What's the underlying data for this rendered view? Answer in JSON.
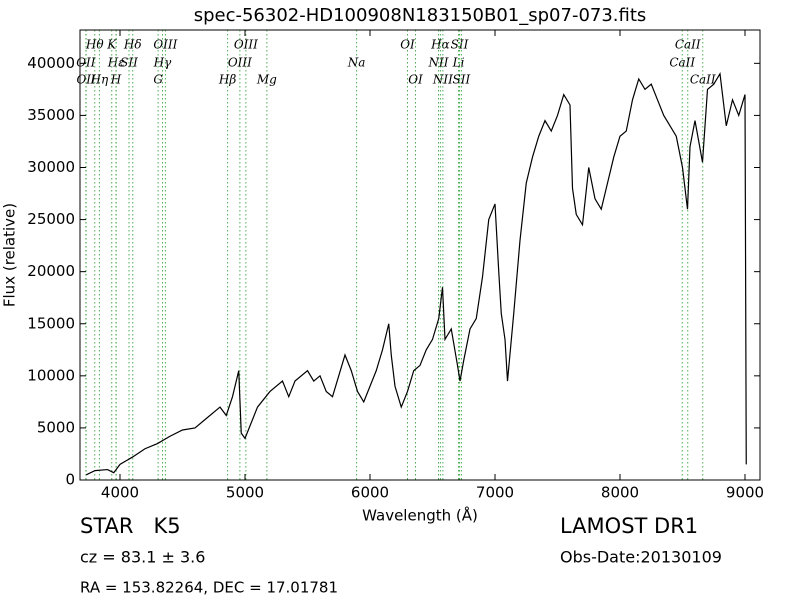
{
  "chart_data": {
    "type": "line",
    "title": "spec-56302-HD100908N183150B01_sp07-073.fits",
    "x_label": "Wavelength (Å)",
    "y_label": "Flux (relative)",
    "xlim": [
      3680,
      9120
    ],
    "ylim": [
      0,
      43200
    ],
    "xticks": [
      4000,
      5000,
      6000,
      7000,
      8000,
      9000
    ],
    "yticks": [
      0,
      5000,
      10000,
      15000,
      20000,
      25000,
      30000,
      35000,
      40000
    ],
    "series": [
      {
        "color": "#000000",
        "x": [
          3730,
          3800,
          3900,
          3950,
          4000,
          4100,
          4200,
          4300,
          4400,
          4500,
          4600,
          4700,
          4800,
          4850,
          4900,
          4950,
          4970,
          5000,
          5100,
          5200,
          5300,
          5350,
          5400,
          5500,
          5550,
          5600,
          5650,
          5700,
          5750,
          5800,
          5850,
          5900,
          5950,
          6000,
          6050,
          6100,
          6150,
          6170,
          6200,
          6250,
          6300,
          6350,
          6400,
          6450,
          6500,
          6550,
          6580,
          6600,
          6650,
          6700,
          6720,
          6750,
          6800,
          6850,
          6900,
          6950,
          7000,
          7030,
          7050,
          7080,
          7100,
          7150,
          7200,
          7250,
          7300,
          7350,
          7400,
          7450,
          7500,
          7550,
          7600,
          7620,
          7650,
          7700,
          7750,
          7800,
          7850,
          7900,
          7950,
          8000,
          8050,
          8100,
          8150,
          8200,
          8250,
          8300,
          8350,
          8400,
          8450,
          8500,
          8540,
          8560,
          8600,
          8660,
          8700,
          8750,
          8800,
          8850,
          8900,
          8950,
          9000,
          9010
        ],
        "values": [
          500,
          900,
          1000,
          700,
          1500,
          2200,
          3000,
          3500,
          4200,
          4800,
          5000,
          6000,
          7000,
          6200,
          8000,
          10500,
          4500,
          4000,
          7000,
          8500,
          9500,
          8000,
          9500,
          10500,
          9500,
          10000,
          8500,
          8000,
          10000,
          12000,
          10500,
          8500,
          7500,
          9000,
          10500,
          12500,
          15000,
          12000,
          9000,
          7000,
          8500,
          10500,
          11000,
          12500,
          13500,
          15500,
          18500,
          13500,
          14500,
          11000,
          9500,
          11500,
          14500,
          15500,
          19500,
          25000,
          26500,
          20000,
          16000,
          13500,
          9500,
          16000,
          23000,
          28500,
          31000,
          33000,
          34500,
          33500,
          35000,
          37000,
          36000,
          28000,
          25500,
          24500,
          30000,
          27000,
          26000,
          28500,
          31000,
          33000,
          33500,
          36500,
          38500,
          37500,
          38000,
          36500,
          35000,
          34000,
          33000,
          30000,
          26000,
          32000,
          34500,
          30500,
          37500,
          38000,
          39000,
          34000,
          36500,
          35000,
          37000,
          1500
        ]
      }
    ],
    "line_color": "#4caf50",
    "lines": [
      {
        "name": "Hθ",
        "x": 3798
      },
      {
        "name": "K",
        "x": 3934
      },
      {
        "name": "Hδ",
        "x": 4102
      },
      {
        "name": "OIII",
        "x": 4363
      },
      {
        "name": "OIII",
        "x": 5007
      },
      {
        "name": "OI",
        "x": 6300
      },
      {
        "name": "Hα",
        "x": 6563
      },
      {
        "name": "SII",
        "x": 6716
      },
      {
        "name": "CaII",
        "x": 8542
      },
      {
        "name": "OII",
        "x": 3727
      },
      {
        "name": "Hε",
        "x": 3970
      },
      {
        "name": "SII",
        "x": 4072
      },
      {
        "name": "Hγ",
        "x": 4340
      },
      {
        "name": "OIII",
        "x": 4959
      },
      {
        "name": "Na",
        "x": 5893
      },
      {
        "name": "NII",
        "x": 6548
      },
      {
        "name": "Li",
        "x": 6708
      },
      {
        "name": "CaII",
        "x": 8498
      },
      {
        "name": "OII",
        "x": 3729
      },
      {
        "name": "Hη",
        "x": 3835
      },
      {
        "name": "H",
        "x": 3968
      },
      {
        "name": "G",
        "x": 4305
      },
      {
        "name": "Hβ",
        "x": 4861
      },
      {
        "name": "Mg",
        "x": 5175
      },
      {
        "name": "OI",
        "x": 6364
      },
      {
        "name": "NII",
        "x": 6583
      },
      {
        "name": "SII",
        "x": 6731
      },
      {
        "name": "CaII",
        "x": 8662
      }
    ],
    "annotations": [
      "STAR   K5",
      "LAMOST DR1",
      "cz = 83.1 ± 3.6",
      "Obs-Date:20130109",
      "RA = 153.82264, DEC = 17.01781"
    ]
  }
}
